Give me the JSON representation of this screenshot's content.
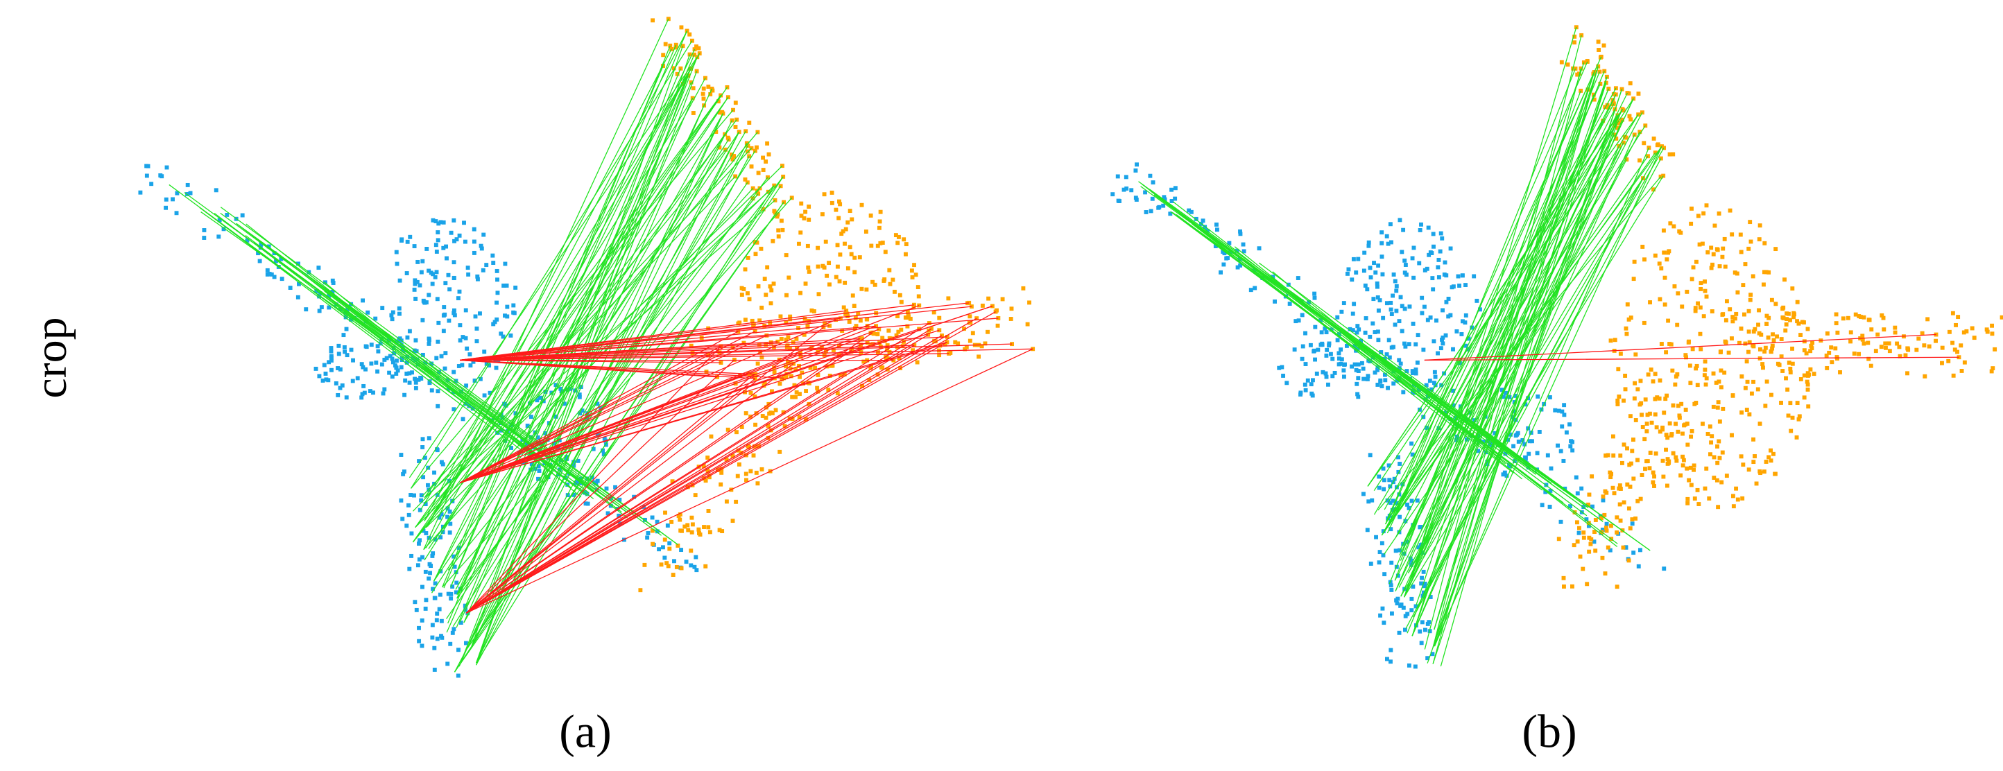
{
  "row_label": "crop",
  "panels": [
    {
      "caption": "(a)"
    },
    {
      "caption": "(b)"
    }
  ]
}
